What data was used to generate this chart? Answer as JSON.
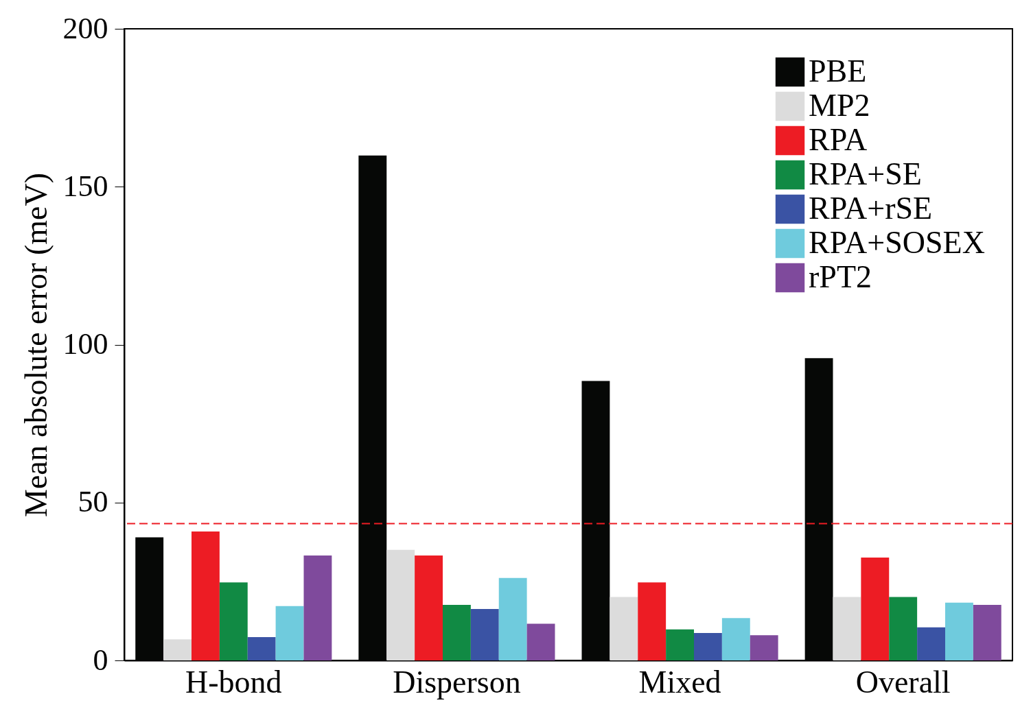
{
  "chart_data": {
    "type": "bar",
    "ylabel": "Mean absolute error (meV)",
    "categories": [
      "H-bond",
      "Disperson",
      "Mixed",
      "Overall"
    ],
    "series": [
      {
        "name": "PBE",
        "color": "#060806",
        "values": [
          39.0,
          159.9,
          88.5,
          95.7
        ]
      },
      {
        "name": "MP2",
        "color": "#dcdcdc",
        "values": [
          6.7,
          35.0,
          20.1,
          20.1
        ]
      },
      {
        "name": "RPA",
        "color": "#ed1c24",
        "values": [
          40.8,
          33.2,
          24.7,
          32.6
        ]
      },
      {
        "name": "RPA+SE",
        "color": "#118a44",
        "values": [
          24.7,
          17.6,
          9.8,
          20.1
        ]
      },
      {
        "name": "RPA+rSE",
        "color": "#3a53a4",
        "values": [
          7.4,
          16.3,
          8.7,
          10.5
        ]
      },
      {
        "name": "RPA+SOSEX",
        "color": "#6fcbdd",
        "values": [
          17.2,
          26.1,
          13.4,
          18.3
        ]
      },
      {
        "name": "rPT2",
        "color": "#7f4a9c",
        "values": [
          33.2,
          11.6,
          8.0,
          17.6
        ]
      }
    ],
    "ylim": [
      0,
      200
    ],
    "yticks": [
      0,
      50,
      100,
      150,
      200
    ],
    "ref_lines": [
      {
        "axis": "y",
        "value": 43.3,
        "color": "#ed1c24",
        "line_style": "dashed"
      }
    ],
    "grid": false,
    "legend": "top right"
  }
}
